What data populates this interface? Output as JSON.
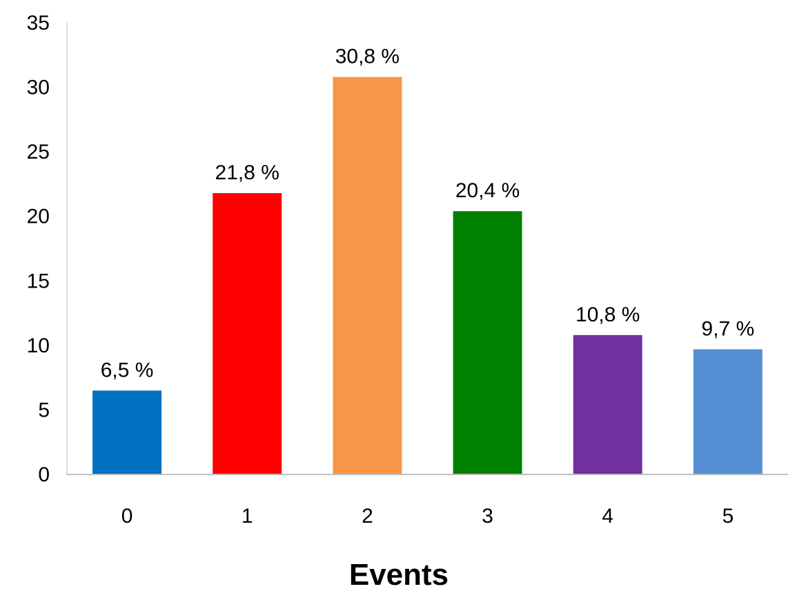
{
  "chart_data": {
    "type": "bar",
    "title": "",
    "xlabel": "Events",
    "ylabel": "",
    "categories": [
      "0",
      "1",
      "2",
      "3",
      "4",
      "5"
    ],
    "values": [
      6.5,
      21.8,
      30.8,
      20.4,
      10.8,
      9.7
    ],
    "data_labels": [
      "6,5 %",
      "21,8 %",
      "30,8 %",
      "20,4 %",
      "10,8 %",
      "9,7 %"
    ],
    "colors": [
      "#0070c0",
      "#ff0000",
      "#f79646",
      "#008000",
      "#7030a0",
      "#558ed5"
    ],
    "ylim": [
      0,
      35
    ],
    "yticks": [
      0,
      5,
      10,
      15,
      20,
      25,
      30,
      35
    ],
    "ytick_labels": [
      "0",
      "5",
      "10",
      "15",
      "20",
      "25",
      "30",
      "35"
    ],
    "grid": false,
    "legend": "none"
  }
}
